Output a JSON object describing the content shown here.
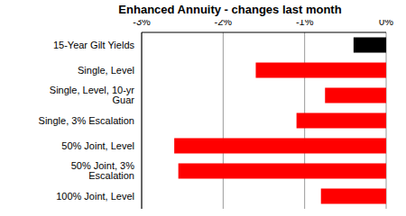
{
  "chart_data": {
    "type": "bar",
    "orientation": "horizontal",
    "title": "Enhanced Annuity - changes last month",
    "categories": [
      "15-Year Gilt Yields",
      "Single, Level",
      "Single, Level, 10-yr Guar",
      "Single, 3% Escalation",
      "50% Joint, Level",
      "50% Joint, 3% Escalation",
      "100% Joint, Level"
    ],
    "values": [
      -0.4,
      -1.6,
      -0.75,
      -1.1,
      -2.6,
      -2.55,
      -0.8
    ],
    "colors": [
      "#000000",
      "#ff0000",
      "#ff0000",
      "#ff0000",
      "#ff0000",
      "#ff0000",
      "#ff0000"
    ],
    "xlim": [
      -3,
      0
    ],
    "xticks": [
      {
        "value": -3,
        "label": "-3%"
      },
      {
        "value": -2,
        "label": "-2%"
      },
      {
        "value": -1,
        "label": "-1%"
      },
      {
        "value": 0,
        "label": "0%"
      }
    ],
    "grid": true
  }
}
